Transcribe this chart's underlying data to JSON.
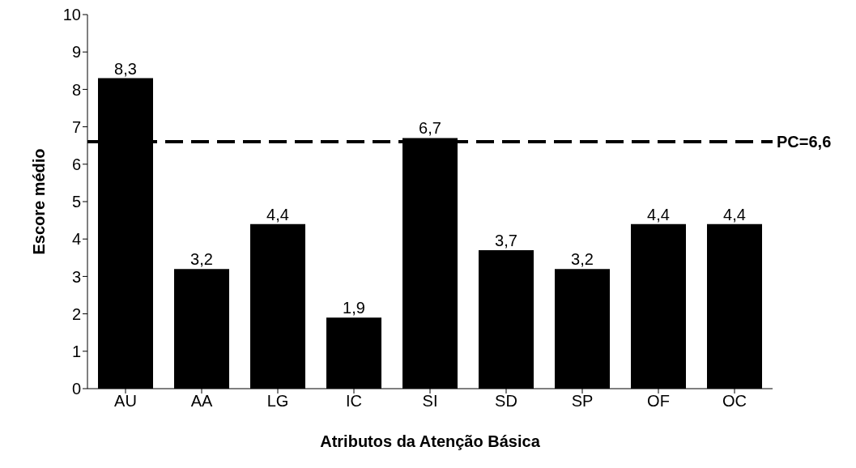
{
  "chart_data": {
    "type": "bar",
    "xlabel": "Atributos da Atenção Básica",
    "ylabel": "Escore médio",
    "categories": [
      "AU",
      "AA",
      "LG",
      "IC",
      "SI",
      "SD",
      "SP",
      "OF",
      "OC"
    ],
    "values": [
      8.3,
      3.2,
      4.4,
      1.9,
      6.7,
      3.7,
      3.2,
      4.4,
      4.4
    ],
    "value_labels": [
      "8,3",
      "3,2",
      "4,4",
      "1,9",
      "6,7",
      "3,7",
      "3,2",
      "4,4",
      "4,4"
    ],
    "color": "#000000",
    "ylim": [
      0,
      10
    ],
    "yticks": [
      0,
      1,
      2,
      3,
      4,
      5,
      6,
      7,
      8,
      9,
      10
    ],
    "grid": false,
    "legend": false,
    "ref_lines": [
      {
        "axis": "y",
        "value": 6.6,
        "label": "PC=6,6",
        "color": "#000000",
        "line_style": "dashed"
      }
    ]
  }
}
